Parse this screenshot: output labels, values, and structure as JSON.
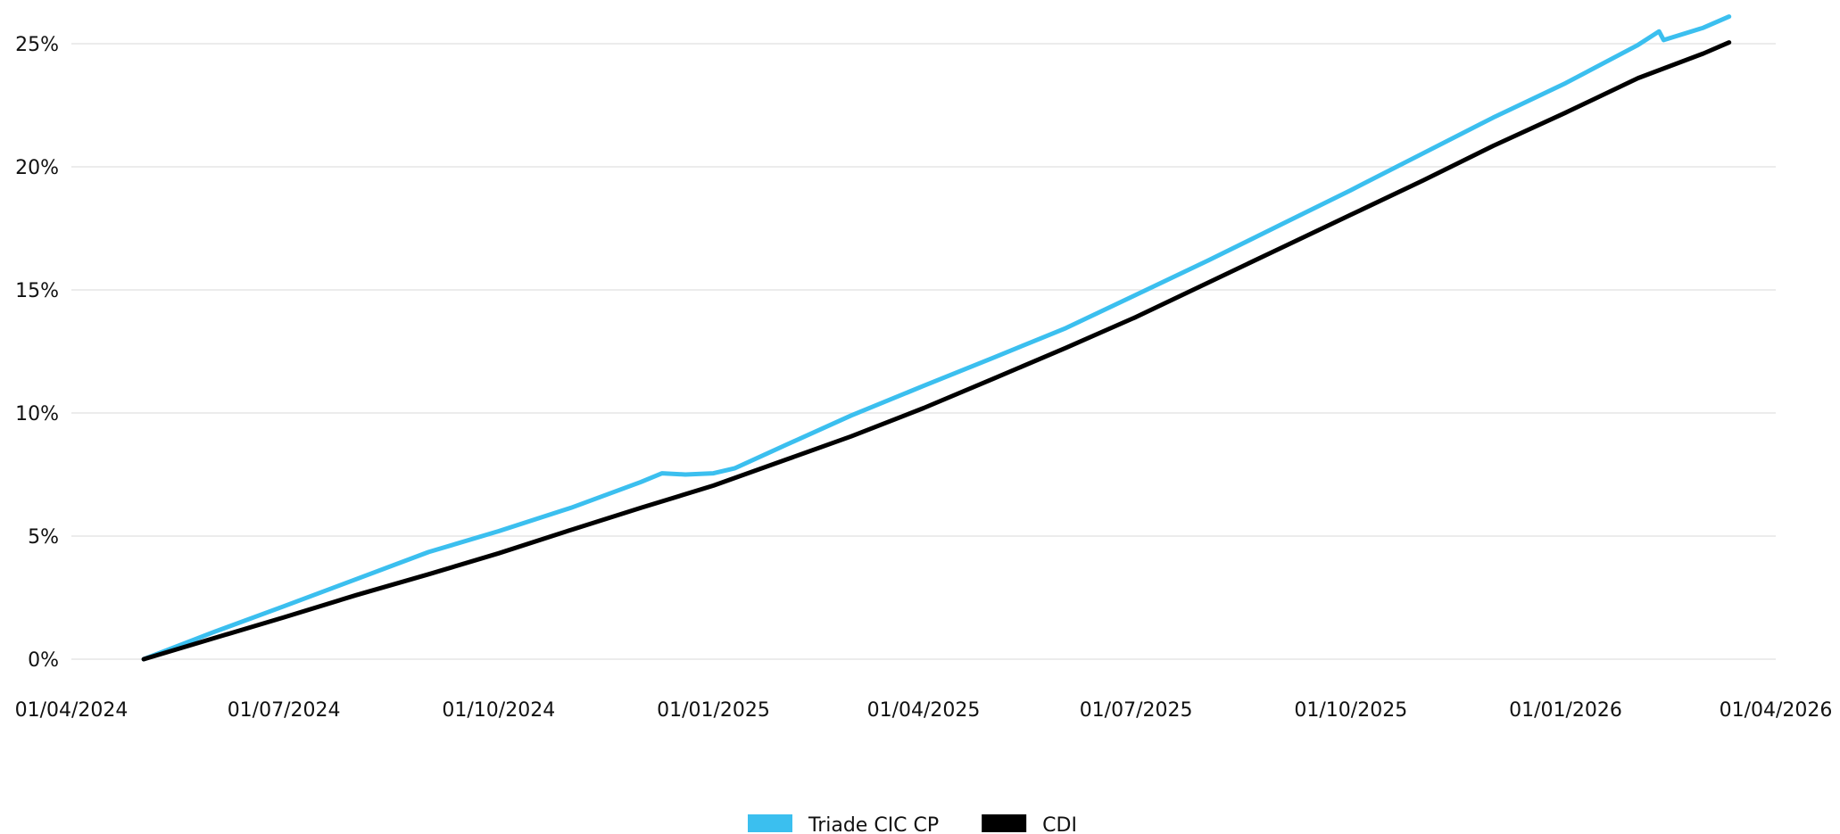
{
  "chart_data": {
    "type": "line",
    "title": "",
    "xlabel": "",
    "ylabel": "",
    "x_ticks": [
      "01/04/2024",
      "01/07/2024",
      "01/10/2024",
      "01/01/2025",
      "01/04/2025",
      "01/07/2025",
      "01/10/2025",
      "01/01/2026",
      "01/04/2026"
    ],
    "y_ticks": [
      "0%",
      "5%",
      "10%",
      "15%",
      "20%",
      "25%"
    ],
    "xlim": [
      "2024-04-01",
      "2026-04-01"
    ],
    "ylim": [
      0,
      25
    ],
    "grid": "horizontal",
    "legend_position": "bottom-center",
    "series": [
      {
        "name": "Triade CIC CP",
        "color": "#3bbfef",
        "points": [
          [
            "2024-05-02",
            0.0
          ],
          [
            "2024-06-01",
            1.1
          ],
          [
            "2024-07-01",
            2.15
          ],
          [
            "2024-08-01",
            3.25
          ],
          [
            "2024-09-01",
            4.35
          ],
          [
            "2024-10-01",
            5.2
          ],
          [
            "2024-11-01",
            6.15
          ],
          [
            "2024-12-01",
            7.2
          ],
          [
            "2024-12-10",
            7.55
          ],
          [
            "2024-12-20",
            7.5
          ],
          [
            "2025-01-01",
            7.55
          ],
          [
            "2025-01-10",
            7.75
          ],
          [
            "2025-02-01",
            8.7
          ],
          [
            "2025-03-01",
            9.9
          ],
          [
            "2025-04-01",
            11.1
          ],
          [
            "2025-05-01",
            12.25
          ],
          [
            "2025-06-01",
            13.45
          ],
          [
            "2025-07-01",
            14.8
          ],
          [
            "2025-08-01",
            16.2
          ],
          [
            "2025-09-01",
            17.65
          ],
          [
            "2025-10-01",
            19.05
          ],
          [
            "2025-11-01",
            20.55
          ],
          [
            "2025-12-01",
            22.0
          ],
          [
            "2026-01-01",
            23.4
          ],
          [
            "2026-02-01",
            24.95
          ],
          [
            "2026-02-10",
            25.5
          ],
          [
            "2026-02-12",
            25.15
          ],
          [
            "2026-03-01",
            25.65
          ],
          [
            "2026-03-12",
            26.1
          ]
        ]
      },
      {
        "name": "CDI",
        "color": "#000000",
        "points": [
          [
            "2024-05-02",
            0.0
          ],
          [
            "2024-06-01",
            0.85
          ],
          [
            "2024-07-01",
            1.7
          ],
          [
            "2024-08-01",
            2.6
          ],
          [
            "2024-09-01",
            3.45
          ],
          [
            "2024-10-01",
            4.3
          ],
          [
            "2024-11-01",
            5.25
          ],
          [
            "2024-12-01",
            6.15
          ],
          [
            "2025-01-01",
            7.05
          ],
          [
            "2025-02-01",
            8.1
          ],
          [
            "2025-03-01",
            9.05
          ],
          [
            "2025-04-01",
            10.2
          ],
          [
            "2025-05-01",
            11.4
          ],
          [
            "2025-06-01",
            12.65
          ],
          [
            "2025-07-01",
            13.9
          ],
          [
            "2025-08-01",
            15.3
          ],
          [
            "2025-09-01",
            16.7
          ],
          [
            "2025-10-01",
            18.05
          ],
          [
            "2025-11-01",
            19.45
          ],
          [
            "2025-12-01",
            20.85
          ],
          [
            "2026-01-01",
            22.2
          ],
          [
            "2026-02-01",
            23.6
          ],
          [
            "2026-03-01",
            24.6
          ],
          [
            "2026-03-12",
            25.05
          ]
        ]
      }
    ]
  }
}
